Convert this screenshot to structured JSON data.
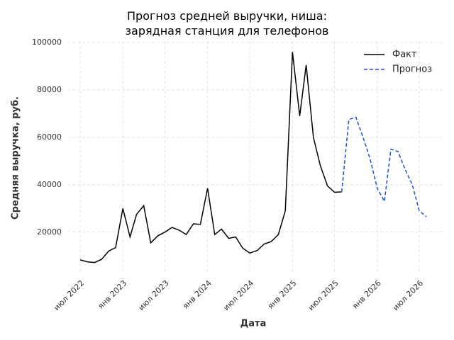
{
  "chart_data": {
    "type": "line",
    "title": "Прогноз средней выручки, ниша:\nзарядная станция для телефонов",
    "xlabel": "Дата",
    "ylabel": "Средняя выручка, руб.",
    "x": [
      "2022-07",
      "2022-08",
      "2022-09",
      "2022-10",
      "2022-11",
      "2022-12",
      "2023-01",
      "2023-02",
      "2023-03",
      "2023-04",
      "2023-05",
      "2023-06",
      "2023-07",
      "2023-08",
      "2023-09",
      "2023-10",
      "2023-11",
      "2023-12",
      "2024-01",
      "2024-02",
      "2024-03",
      "2024-04",
      "2024-05",
      "2024-06",
      "2024-07",
      "2024-08",
      "2024-09",
      "2024-10",
      "2024-11",
      "2024-12",
      "2025-01",
      "2025-02",
      "2025-03",
      "2025-04",
      "2025-05",
      "2025-06",
      "2025-07",
      "2025-08",
      "2025-09",
      "2025-10",
      "2025-11",
      "2025-12",
      "2026-01",
      "2026-02",
      "2026-03",
      "2026-04",
      "2026-05",
      "2026-06",
      "2026-07",
      "2026-08"
    ],
    "series": [
      {
        "name": "Факт",
        "color": "#000000",
        "dash": false,
        "values": [
          8300,
          7500,
          7200,
          8500,
          12000,
          13500,
          30000,
          18000,
          27500,
          31200,
          15500,
          18500,
          20000,
          22000,
          20800,
          19000,
          23500,
          23300,
          38500,
          19000,
          21300,
          17400,
          18000,
          13200,
          11200,
          12200,
          15000,
          16000,
          19000,
          29000,
          96000,
          69000,
          90500,
          60000,
          48000,
          39500,
          36800,
          37000,
          null,
          null,
          null,
          null,
          null,
          null,
          null,
          null,
          null,
          null,
          null,
          null
        ]
      },
      {
        "name": "Прогноз",
        "color": "#1f4fd1",
        "dash": true,
        "values": [
          null,
          null,
          null,
          null,
          null,
          null,
          null,
          null,
          null,
          null,
          null,
          null,
          null,
          null,
          null,
          null,
          null,
          null,
          null,
          null,
          null,
          null,
          null,
          null,
          null,
          null,
          null,
          null,
          null,
          null,
          null,
          null,
          null,
          null,
          null,
          null,
          null,
          37000,
          67500,
          68500,
          60000,
          51000,
          38500,
          33000,
          55000,
          54000,
          46500,
          40000,
          29000,
          26500
        ]
      }
    ],
    "xlim": [
      "2022-05-07",
      "2026-10-13"
    ],
    "xticks": [
      {
        "value": "2022-07",
        "label": "июл 2022"
      },
      {
        "value": "2023-01",
        "label": "янв 2023"
      },
      {
        "value": "2023-07",
        "label": "июл 2023"
      },
      {
        "value": "2024-01",
        "label": "янв 2024"
      },
      {
        "value": "2024-07",
        "label": "июл 2024"
      },
      {
        "value": "2025-01",
        "label": "янв 2025"
      },
      {
        "value": "2025-07",
        "label": "июл 2025"
      },
      {
        "value": "2026-01",
        "label": "янв 2026"
      },
      {
        "value": "2026-07",
        "label": "июл 2026"
      }
    ],
    "ylim": [
      2000,
      100600
    ],
    "yticks": [
      20000,
      40000,
      60000,
      80000,
      100000
    ],
    "grid": true,
    "legend": "upper right"
  }
}
